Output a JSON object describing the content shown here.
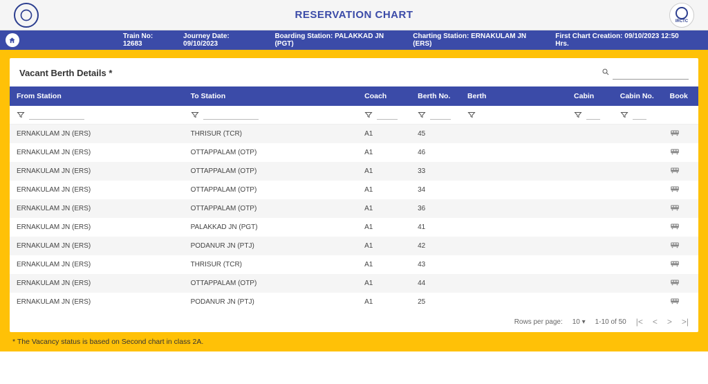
{
  "header": {
    "title": "RESERVATION CHART",
    "irctc_label": "IRCTC"
  },
  "infobar": {
    "train_no_label": "Train No:",
    "train_no": "12683",
    "journey_label": "Journey Date:",
    "journey_date": "09/10/2023",
    "boarding_label": "Boarding Station:",
    "boarding": "PALAKKAD JN (PGT)",
    "charting_label": "Charting Station:",
    "charting": "ERNAKULAM JN (ERS)",
    "first_chart_label": "First Chart Creation:",
    "first_chart": "09/10/2023 12:50 Hrs."
  },
  "panel": {
    "title": "Vacant Berth Details *"
  },
  "columns": {
    "from": "From Station",
    "to": "To Station",
    "coach": "Coach",
    "berthno": "Berth No.",
    "berth": "Berth",
    "cabin": "Cabin",
    "cabinno": "Cabin No.",
    "book": "Book"
  },
  "rows": [
    {
      "from": "ERNAKULAM JN (ERS)",
      "to": "THRISUR (TCR)",
      "coach": "A1",
      "berthno": "45",
      "berth": "",
      "cabin": "",
      "cabinno": ""
    },
    {
      "from": "ERNAKULAM JN (ERS)",
      "to": "OTTAPPALAM (OTP)",
      "coach": "A1",
      "berthno": "46",
      "berth": "",
      "cabin": "",
      "cabinno": ""
    },
    {
      "from": "ERNAKULAM JN (ERS)",
      "to": "OTTAPPALAM (OTP)",
      "coach": "A1",
      "berthno": "33",
      "berth": "",
      "cabin": "",
      "cabinno": ""
    },
    {
      "from": "ERNAKULAM JN (ERS)",
      "to": "OTTAPPALAM (OTP)",
      "coach": "A1",
      "berthno": "34",
      "berth": "",
      "cabin": "",
      "cabinno": ""
    },
    {
      "from": "ERNAKULAM JN (ERS)",
      "to": "OTTAPPALAM (OTP)",
      "coach": "A1",
      "berthno": "36",
      "berth": "",
      "cabin": "",
      "cabinno": ""
    },
    {
      "from": "ERNAKULAM JN (ERS)",
      "to": "PALAKKAD JN (PGT)",
      "coach": "A1",
      "berthno": "41",
      "berth": "",
      "cabin": "",
      "cabinno": ""
    },
    {
      "from": "ERNAKULAM JN (ERS)",
      "to": "PODANUR JN (PTJ)",
      "coach": "A1",
      "berthno": "42",
      "berth": "",
      "cabin": "",
      "cabinno": ""
    },
    {
      "from": "ERNAKULAM JN (ERS)",
      "to": "THRISUR (TCR)",
      "coach": "A1",
      "berthno": "43",
      "berth": "",
      "cabin": "",
      "cabinno": ""
    },
    {
      "from": "ERNAKULAM JN (ERS)",
      "to": "OTTAPPALAM (OTP)",
      "coach": "A1",
      "berthno": "44",
      "berth": "",
      "cabin": "",
      "cabinno": ""
    },
    {
      "from": "ERNAKULAM JN (ERS)",
      "to": "PODANUR JN (PTJ)",
      "coach": "A1",
      "berthno": "25",
      "berth": "",
      "cabin": "",
      "cabinno": ""
    }
  ],
  "pager": {
    "rows_label": "Rows per page:",
    "rows_value": "10",
    "range": "1-10 of 50"
  },
  "footnote": "* The Vacancy status is based on Second chart in class 2A."
}
